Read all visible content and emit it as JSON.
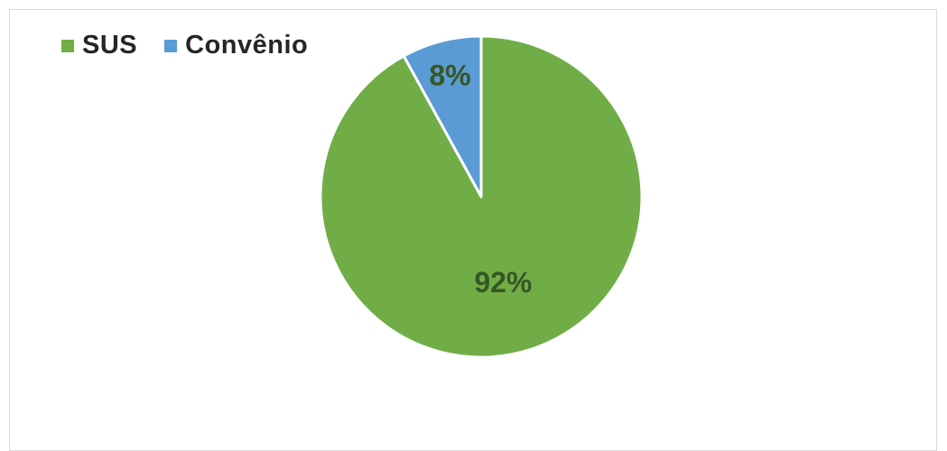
{
  "chart_data": {
    "type": "pie",
    "categories": [
      "SUS",
      "Convênio"
    ],
    "values": [
      92,
      8
    ],
    "labels": [
      "92%",
      "8%"
    ],
    "colors": [
      "#70ad47",
      "#5b9bd5"
    ],
    "label_color": "#375623",
    "legend_position": "top-left",
    "title": ""
  }
}
